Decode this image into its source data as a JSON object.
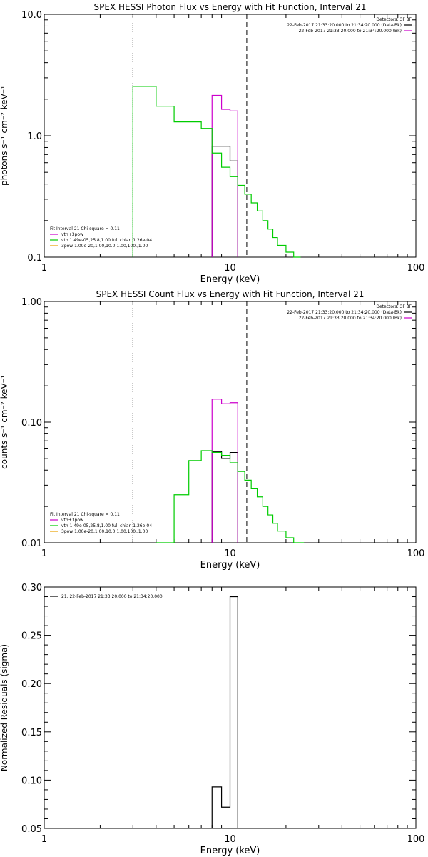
{
  "chart_data": [
    {
      "type": "line",
      "title": "SPEX HESSI Photon Flux vs Energy with Fit Function, Interval 21",
      "xlabel": "Energy (keV)",
      "ylabel": "photons s⁻¹ cm⁻² keV⁻¹",
      "xscale": "log",
      "yscale": "log",
      "xlim": [
        1,
        100
      ],
      "ylim": [
        0.1,
        10.0
      ],
      "xticks": [
        {
          "v": 1,
          "label": "1"
        },
        {
          "v": 10,
          "label": "10"
        },
        {
          "v": 100,
          "label": "100"
        }
      ],
      "yticks": [
        {
          "v": 0.1,
          "label": "0.1"
        },
        {
          "v": 1.0,
          "label": "1.0"
        },
        {
          "v": 10.0,
          "label": "10.0"
        }
      ],
      "vlines": [
        {
          "x": 3,
          "style": "dotted"
        },
        {
          "x": 12.3,
          "style": "dashed"
        }
      ],
      "legend_header": "Detectors: 3F 8F",
      "legend": [
        {
          "text": "22-Feb-2017 21:33:20.000 to 21:34:20.000 (Data-Bk)",
          "color": "#000000"
        },
        {
          "text": "22-Feb-2017 21:33:20.000 to 21:34:20.000 (Bk)",
          "color": "#cc00cc"
        }
      ],
      "fit_header": "Fit Interval 21    Chi-square = 0.11",
      "fit_info": [
        {
          "text": "vth+3pow",
          "color": "#cc00cc"
        },
        {
          "text": "vth 1.49e-05,25.8,1.00  full chian 1.26e-04",
          "color": "#00cc00"
        },
        {
          "text": "3pow 1.00e-20,1.00,10.0,1.00,100.,1.00",
          "color": "#e8a000"
        }
      ],
      "series": [
        {
          "color": "#000000",
          "steps": [
            [
              8,
              10,
              0.82
            ],
            [
              10,
              11,
              0.62
            ]
          ]
        },
        {
          "color": "#cc00cc",
          "steps": [
            [
              8,
              9,
              2.15
            ],
            [
              9,
              10,
              1.65
            ],
            [
              10,
              11,
              1.6
            ]
          ]
        },
        {
          "color": "#00cc00",
          "steps": [
            [
              3,
              4,
              2.55
            ],
            [
              4,
              5,
              1.75
            ],
            [
              5,
              7,
              1.3
            ],
            [
              7,
              8,
              1.15
            ],
            [
              8,
              9,
              0.72
            ],
            [
              9,
              10,
              0.55
            ],
            [
              10,
              11,
              0.46
            ],
            [
              11,
              12,
              0.39
            ],
            [
              12,
              13,
              0.33
            ],
            [
              13,
              14,
              0.28
            ],
            [
              14,
              15,
              0.24
            ],
            [
              15,
              16,
              0.2
            ],
            [
              16,
              17,
              0.17
            ],
            [
              17,
              18,
              0.145
            ],
            [
              18,
              20,
              0.125
            ],
            [
              20,
              22,
              0.11
            ],
            [
              22,
              24,
              0.095
            ]
          ]
        }
      ]
    },
    {
      "type": "line",
      "title": "SPEX HESSI Count Flux vs Energy with Fit Function, Interval 21",
      "xlabel": "Energy (keV)",
      "ylabel": "counts s⁻¹ cm⁻² keV⁻¹",
      "xscale": "log",
      "yscale": "log",
      "xlim": [
        1,
        100
      ],
      "ylim": [
        0.01,
        1.0
      ],
      "xticks": [
        {
          "v": 1,
          "label": "1"
        },
        {
          "v": 10,
          "label": "10"
        },
        {
          "v": 100,
          "label": "100"
        }
      ],
      "yticks": [
        {
          "v": 0.01,
          "label": "0.01"
        },
        {
          "v": 0.1,
          "label": "0.10"
        },
        {
          "v": 1.0,
          "label": "1.00"
        }
      ],
      "vlines": [
        {
          "x": 3,
          "style": "dotted"
        },
        {
          "x": 12.3,
          "style": "dashed"
        }
      ],
      "legend_header": "Detectors: 3F 8F",
      "legend": [
        {
          "text": "22-Feb-2017 21:33:20.000 to 21:34:20.000 (Data-Bk)",
          "color": "#000000"
        },
        {
          "text": "22-Feb-2017 21:33:20.000 to 21:34:20.000 (Bk)",
          "color": "#cc00cc"
        }
      ],
      "fit_header": "Fit Interval 21    Chi-square = 0.11",
      "fit_info": [
        {
          "text": "vth+3pow",
          "color": "#cc00cc"
        },
        {
          "text": "vth 1.49e-05,25.8,1.00  full chian 1.26e-04",
          "color": "#00cc00"
        },
        {
          "text": "3pow 1.00e-20,1.00,10.0,1.00,100.,1.00",
          "color": "#e8a000"
        }
      ],
      "series": [
        {
          "color": "#000000",
          "steps": [
            [
              8,
              9,
              0.057
            ],
            [
              9,
              10,
              0.05
            ],
            [
              10,
              11,
              0.056
            ]
          ]
        },
        {
          "color": "#cc00cc",
          "steps": [
            [
              8,
              9,
              0.155
            ],
            [
              9,
              10,
              0.142
            ],
            [
              10,
              11,
              0.145
            ]
          ]
        },
        {
          "color": "#00cc00",
          "steps": [
            [
              4,
              5,
              0.0085
            ],
            [
              5,
              6,
              0.025
            ],
            [
              6,
              7,
              0.048
            ],
            [
              7,
              8,
              0.058
            ],
            [
              8,
              9,
              0.056
            ],
            [
              9,
              10,
              0.053
            ],
            [
              10,
              11,
              0.046
            ],
            [
              11,
              12,
              0.039
            ],
            [
              12,
              13,
              0.033
            ],
            [
              13,
              14,
              0.028
            ],
            [
              14,
              15,
              0.024
            ],
            [
              15,
              16,
              0.02
            ],
            [
              16,
              17,
              0.017
            ],
            [
              17,
              18,
              0.0145
            ],
            [
              18,
              20,
              0.0125
            ],
            [
              20,
              22,
              0.011
            ],
            [
              22,
              25,
              0.01
            ]
          ]
        }
      ]
    },
    {
      "type": "line",
      "title": "",
      "xlabel": "Energy (keV)",
      "ylabel": "Normalized Residuals (sigma)",
      "xscale": "log",
      "yscale": "linear",
      "xlim": [
        1,
        100
      ],
      "ylim": [
        0.05,
        0.3
      ],
      "xticks": [
        {
          "v": 1,
          "label": "1"
        },
        {
          "v": 10,
          "label": "10"
        },
        {
          "v": 100,
          "label": "100"
        }
      ],
      "yticks": [
        {
          "v": 0.05,
          "label": "0.05"
        },
        {
          "v": 0.1,
          "label": "0.10"
        },
        {
          "v": 0.15,
          "label": "0.15"
        },
        {
          "v": 0.2,
          "label": "0.20"
        },
        {
          "v": 0.25,
          "label": "0.25"
        },
        {
          "v": 0.3,
          "label": "0.30"
        }
      ],
      "vlines": [],
      "legend_header": "",
      "legend": [
        {
          "text": "21. 22-Feb-2017 21:33:20.000 to 21:34:20.000",
          "color": "#000000"
        }
      ],
      "fit_header": "",
      "fit_info": [],
      "series": [
        {
          "color": "#000000",
          "steps": [
            [
              8,
              9,
              0.093
            ],
            [
              9,
              10,
              0.072
            ],
            [
              10,
              11,
              0.29
            ]
          ]
        }
      ]
    }
  ]
}
